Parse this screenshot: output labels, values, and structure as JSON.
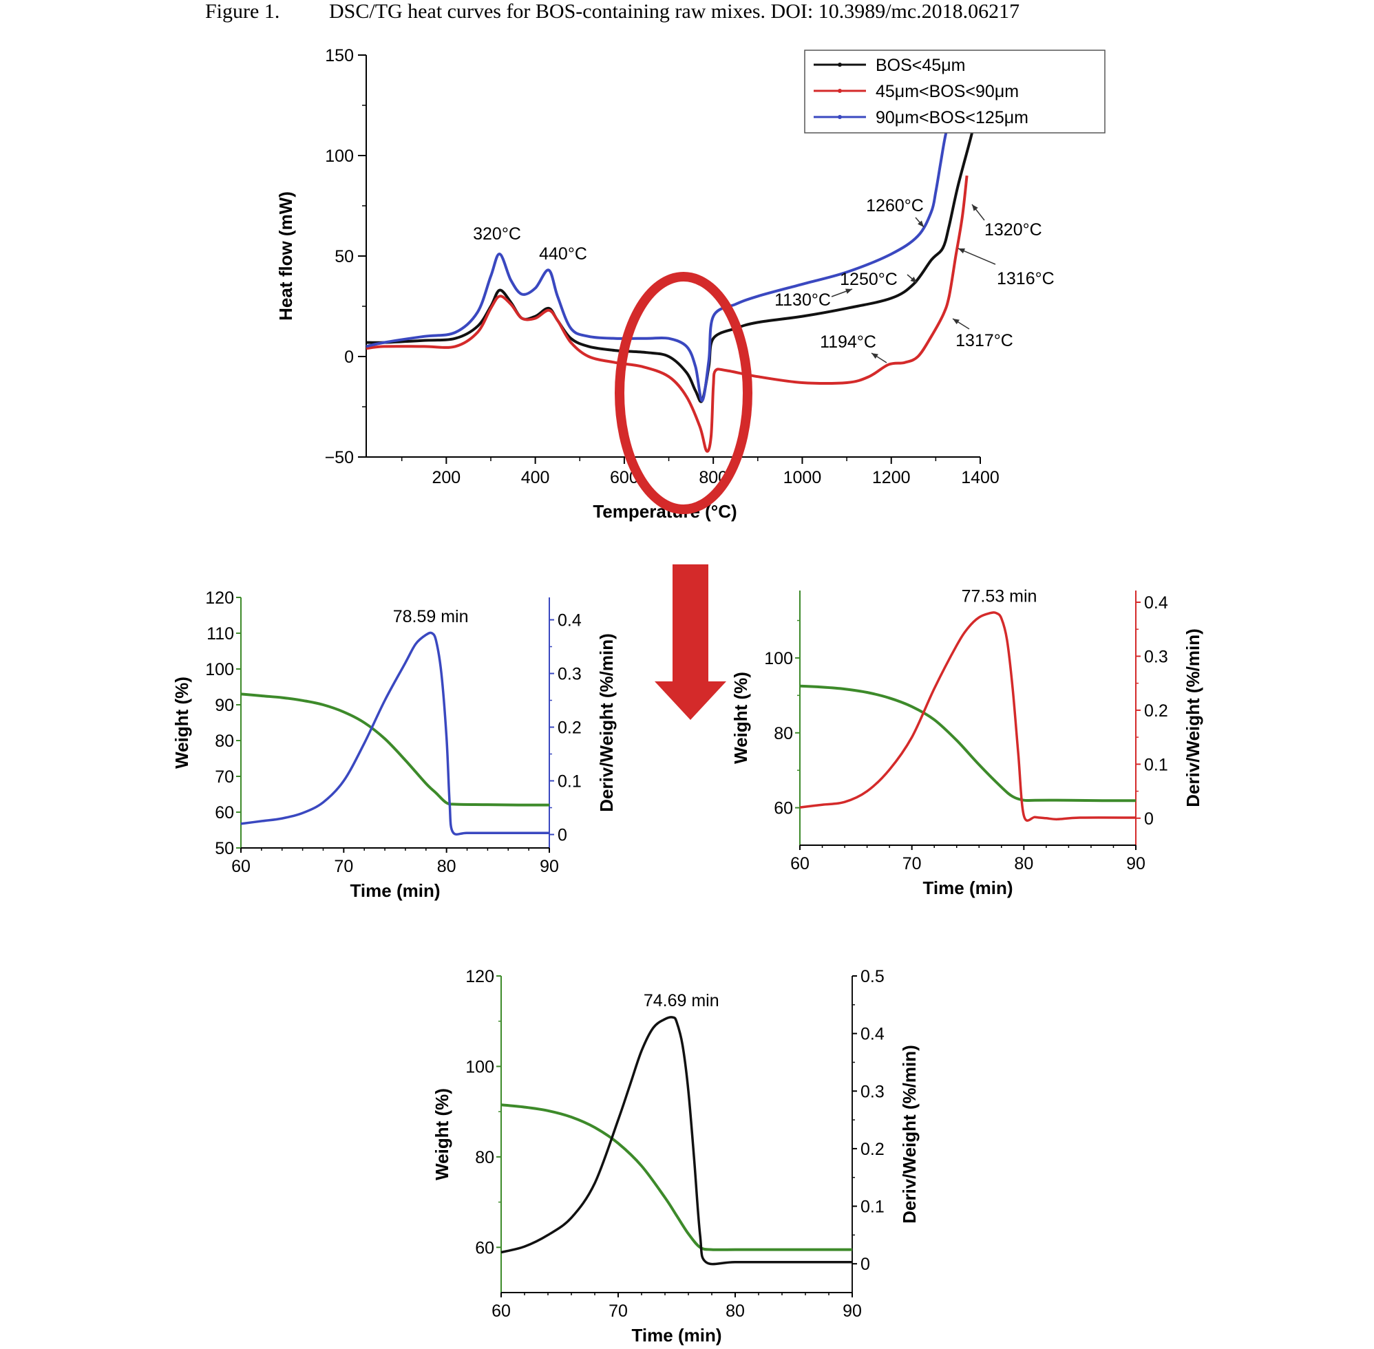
{
  "caption": {
    "label": "Figure 1.",
    "text": "DSC/TG heat curves for BOS-containing raw mixes. DOI: 10.3989/mc.2018.06217"
  },
  "colors": {
    "black": "#111111",
    "red": "#d42a2a",
    "blue": "#3a48c0",
    "green": "#3d8a2a",
    "highlight": "#d42a2a"
  },
  "chart_data": [
    {
      "type": "line",
      "xlabel": "Temperature (°C)",
      "ylabel": "Heat flow (mW)",
      "xlim": [
        20,
        1400
      ],
      "ylim": [
        -50,
        150
      ],
      "xticks": [
        200,
        400,
        600,
        800,
        1000,
        1200,
        1400
      ],
      "yticks": [
        -50,
        0,
        50,
        100,
        150
      ],
      "legend_position": "top-right",
      "series": [
        {
          "name": "BOS<45μm",
          "color": "#111111",
          "x": [
            20,
            60,
            150,
            220,
            270,
            300,
            320,
            345,
            370,
            400,
            430,
            450,
            480,
            520,
            580,
            650,
            700,
            740,
            760,
            775,
            790,
            800,
            850,
            900,
            1000,
            1100,
            1200,
            1250,
            1290,
            1316,
            1330,
            1350,
            1380,
            1395
          ],
          "y": [
            7,
            7,
            8,
            9,
            15,
            25,
            33,
            27,
            19,
            20,
            24,
            18,
            9,
            5,
            3,
            2,
            0,
            -8,
            -17,
            -22,
            -5,
            9,
            14,
            17,
            20,
            24,
            29,
            36,
            48,
            54,
            65,
            85,
            110,
            125
          ]
        },
        {
          "name": "45μm<BOS<90μm",
          "color": "#d42a2a",
          "x": [
            20,
            60,
            150,
            220,
            270,
            300,
            320,
            345,
            370,
            400,
            430,
            450,
            480,
            520,
            580,
            640,
            700,
            740,
            770,
            785,
            795,
            800,
            805,
            830,
            900,
            1000,
            1100,
            1150,
            1194,
            1230,
            1260,
            1290,
            1317,
            1330,
            1345,
            1360,
            1370
          ],
          "y": [
            4,
            5,
            5,
            5,
            12,
            24,
            30,
            26,
            19,
            19,
            23,
            18,
            7,
            0,
            -3,
            -5,
            -10,
            -20,
            -35,
            -47,
            -40,
            -15,
            -7,
            -7,
            -10,
            -13,
            -13,
            -10,
            -4,
            -3,
            0,
            10,
            21,
            30,
            50,
            70,
            90
          ]
        },
        {
          "name": "90μm<BOS<125μm",
          "color": "#3a48c0",
          "x": [
            20,
            60,
            150,
            220,
            270,
            300,
            320,
            345,
            370,
            400,
            430,
            450,
            480,
            520,
            580,
            650,
            700,
            740,
            760,
            775,
            790,
            800,
            850,
            900,
            1000,
            1100,
            1200,
            1260,
            1290,
            1300,
            1310,
            1320,
            1330
          ],
          "y": [
            5,
            7,
            10,
            12,
            22,
            40,
            51,
            38,
            31,
            34,
            43,
            30,
            14,
            10,
            9,
            9,
            9,
            5,
            -5,
            -22,
            -2,
            20,
            26,
            30,
            36,
            42,
            51,
            60,
            72,
            82,
            95,
            108,
            118
          ]
        }
      ],
      "annotations": [
        "320°C",
        "440°C",
        "1260°C",
        "1320°C",
        "1250°C",
        "1316°C",
        "1130°C",
        "1194°C",
        "1317°C"
      ]
    },
    {
      "type": "line",
      "xlabel": "Time (min)",
      "ylabel": "Weight (%)",
      "ylabel_right": "Deriv/Weight (%/min)",
      "xlim": [
        60,
        90
      ],
      "ylim": [
        50,
        120
      ],
      "ylim_right": [
        -0.025,
        0.4417
      ],
      "xticks": [
        60,
        70,
        80,
        90
      ],
      "yticks": [
        50,
        60,
        70,
        80,
        90,
        100,
        110,
        120
      ],
      "yticks_right": [
        0,
        0.1,
        0.2,
        0.3,
        0.4
      ],
      "peak_label": "78.59 min",
      "series": [
        {
          "axis": "left",
          "color": "#3d8a2a",
          "x": [
            60,
            62,
            64,
            66,
            68,
            70,
            72,
            74,
            76,
            78,
            79,
            80,
            81,
            84,
            87,
            90
          ],
          "y": [
            93,
            92.5,
            92,
            91.2,
            90,
            88,
            85,
            80.5,
            74.5,
            68,
            65.3,
            62.6,
            62.2,
            62.1,
            62,
            62
          ]
        },
        {
          "axis": "right",
          "color": "#3a48c0",
          "x": [
            60,
            62,
            64,
            66,
            68,
            70,
            72,
            74,
            76,
            77,
            78,
            78.59,
            79,
            79.5,
            80,
            80.3,
            80.6,
            82,
            85,
            90
          ],
          "y": [
            0.02,
            0.025,
            0.03,
            0.04,
            0.06,
            0.1,
            0.17,
            0.25,
            0.32,
            0.355,
            0.372,
            0.375,
            0.36,
            0.3,
            0.18,
            0.06,
            0.005,
            0.003,
            0.003,
            0.003
          ]
        }
      ]
    },
    {
      "type": "line",
      "xlabel": "Time (min)",
      "ylabel": "Weight (%)",
      "ylabel_right": "Deriv/Weight (%/min)",
      "xlim": [
        60,
        90
      ],
      "ylim": [
        50,
        118
      ],
      "ylim_right": [
        -0.05,
        0.4217
      ],
      "xticks": [
        60,
        70,
        80,
        90
      ],
      "yticks": [
        60,
        80,
        100
      ],
      "yticks_right": [
        0,
        0.1,
        0.2,
        0.3,
        0.4
      ],
      "peak_label": "77.53 min",
      "series": [
        {
          "axis": "left",
          "color": "#3d8a2a",
          "x": [
            60,
            62,
            64,
            66,
            68,
            70,
            72,
            74,
            76,
            78,
            79,
            80,
            81,
            84,
            87,
            90
          ],
          "y": [
            92.5,
            92.2,
            91.7,
            90.8,
            89.3,
            87,
            83.5,
            78,
            71.5,
            65.5,
            63,
            62,
            62,
            62,
            61.9,
            61.9
          ]
        },
        {
          "axis": "right",
          "color": "#d42a2a",
          "x": [
            60,
            62,
            64,
            66,
            68,
            70,
            72,
            74,
            75,
            76,
            77,
            77.53,
            78,
            78.5,
            79,
            79.5,
            80,
            81,
            82,
            83,
            85,
            90
          ],
          "y": [
            0.02,
            0.025,
            0.03,
            0.05,
            0.09,
            0.15,
            0.24,
            0.32,
            0.352,
            0.372,
            0.38,
            0.38,
            0.37,
            0.33,
            0.24,
            0.12,
            0.005,
            0.002,
            0.0,
            -0.002,
            0.001,
            0.001
          ]
        }
      ]
    },
    {
      "type": "line",
      "xlabel": "Time (min)",
      "ylabel": "Weight (%)",
      "ylabel_right": "Deriv/Weight (%/min)",
      "xlim": [
        60,
        90
      ],
      "ylim": [
        50,
        120
      ],
      "ylim_right": [
        -0.05,
        0.5
      ],
      "xticks": [
        60,
        70,
        80,
        90
      ],
      "yticks": [
        60,
        80,
        100,
        120
      ],
      "yticks_right": [
        0,
        0.1,
        0.2,
        0.3,
        0.4,
        0.5
      ],
      "peak_label": "74.69 min",
      "series": [
        {
          "axis": "left",
          "color": "#3d8a2a",
          "x": [
            60,
            62,
            64,
            66,
            68,
            70,
            72,
            74,
            75,
            76,
            77,
            78,
            80,
            84,
            90
          ],
          "y": [
            91.5,
            91,
            90.2,
            88.8,
            86.5,
            83,
            78,
            71,
            67,
            63,
            60,
            59.5,
            59.5,
            59.5,
            59.5
          ]
        },
        {
          "axis": "right",
          "color": "#111111",
          "x": [
            60,
            62,
            64,
            66,
            68,
            70,
            71,
            72,
            73,
            74,
            74.69,
            75,
            75.5,
            76,
            76.5,
            77,
            77.5,
            80,
            85,
            90
          ],
          "y": [
            0.02,
            0.03,
            0.05,
            0.08,
            0.14,
            0.25,
            0.31,
            0.37,
            0.41,
            0.425,
            0.428,
            0.42,
            0.38,
            0.3,
            0.18,
            0.05,
            0.003,
            0.003,
            0.003,
            0.003
          ]
        }
      ]
    }
  ]
}
